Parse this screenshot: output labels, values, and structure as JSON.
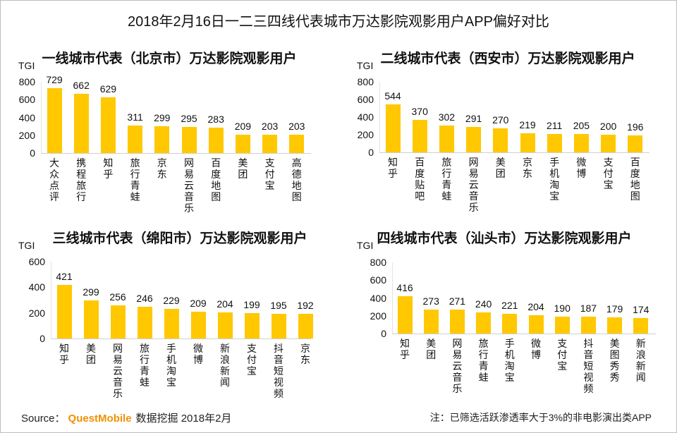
{
  "title": "2018年2月16日一二三四线代表城市万达影院观影用户APP偏好对比",
  "colors": {
    "bar": "#ffc800",
    "brand": "#f29100"
  },
  "footer": {
    "source_label": "Source：",
    "brand": "QuestMobile",
    "source_text": "数据挖掘 2018年2月",
    "note": "注：已筛选活跃渗透率大于3%的非电影演出类APP"
  },
  "chart_data": [
    {
      "type": "bar",
      "title": "一线城市代表（北京市）万达影院观影用户",
      "ylabel": "TGI",
      "ylim": [
        0,
        800
      ],
      "yticks": [
        "0",
        "200",
        "400",
        "600",
        "800"
      ],
      "grid": false,
      "categories": [
        "大众点评",
        "携程旅行",
        "知乎",
        "旅行青蛙",
        "京东",
        "网易云音乐",
        "百度地图",
        "美团",
        "支付宝",
        "高德地图"
      ],
      "values": [
        729,
        662,
        629,
        311,
        299,
        295,
        283,
        209,
        203,
        203
      ]
    },
    {
      "type": "bar",
      "title": "二线城市代表（西安市）万达影院观影用户",
      "ylabel": "TGI",
      "ylim": [
        0,
        800
      ],
      "yticks": [
        "0",
        "200",
        "400",
        "600",
        "800"
      ],
      "grid": false,
      "categories": [
        "知乎",
        "百度贴吧",
        "旅行青蛙",
        "网易云音乐",
        "美团",
        "京东",
        "手机淘宝",
        "微博",
        "支付宝",
        "百度地图"
      ],
      "values": [
        544,
        370,
        302,
        291,
        270,
        219,
        211,
        205,
        200,
        196
      ]
    },
    {
      "type": "bar",
      "title": "三线城市代表（绵阳市）万达影院观影用户",
      "ylabel": "TGI",
      "ylim": [
        0,
        600
      ],
      "yticks": [
        "0",
        "200",
        "400",
        "600"
      ],
      "grid": false,
      "categories": [
        "知乎",
        "美团",
        "网易云音乐",
        "旅行青蛙",
        "手机淘宝",
        "微博",
        "新浪新闻",
        "支付宝",
        "抖音短视频",
        "京东"
      ],
      "values": [
        421,
        299,
        256,
        246,
        229,
        209,
        204,
        199,
        195,
        192
      ]
    },
    {
      "type": "bar",
      "title": "四线城市代表（汕头市）万达影院观影用户",
      "ylabel": "TGI",
      "ylim": [
        0,
        800
      ],
      "yticks": [
        "0",
        "200",
        "400",
        "600",
        "800"
      ],
      "grid": false,
      "categories": [
        "知乎",
        "美团",
        "网易云音乐",
        "旅行青蛙",
        "手机淘宝",
        "微博",
        "支付宝",
        "抖音短视频",
        "美图秀秀",
        "新浪新闻"
      ],
      "values": [
        416,
        273,
        271,
        240,
        221,
        204,
        190,
        187,
        179,
        174
      ]
    }
  ]
}
